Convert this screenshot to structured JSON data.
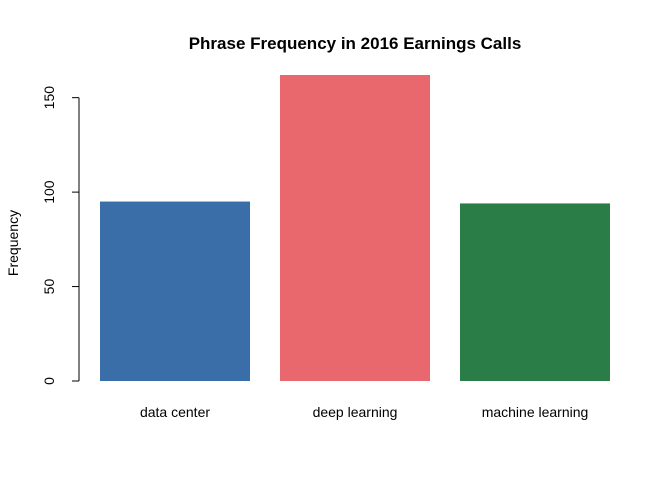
{
  "chart_data": {
    "type": "bar",
    "title": "Phrase Frequency in 2016 Earnings Calls",
    "xlabel": "",
    "ylabel": "Frequency",
    "categories": [
      "data center",
      "deep learning",
      "machine learning"
    ],
    "values": [
      95,
      162,
      94
    ],
    "colors": [
      "#3a6ea8",
      "#e9686d",
      "#2a7d46"
    ],
    "ylim": [
      0,
      162
    ],
    "yticks": [
      0,
      50,
      100,
      150
    ],
    "grid": false,
    "legend": "none"
  }
}
